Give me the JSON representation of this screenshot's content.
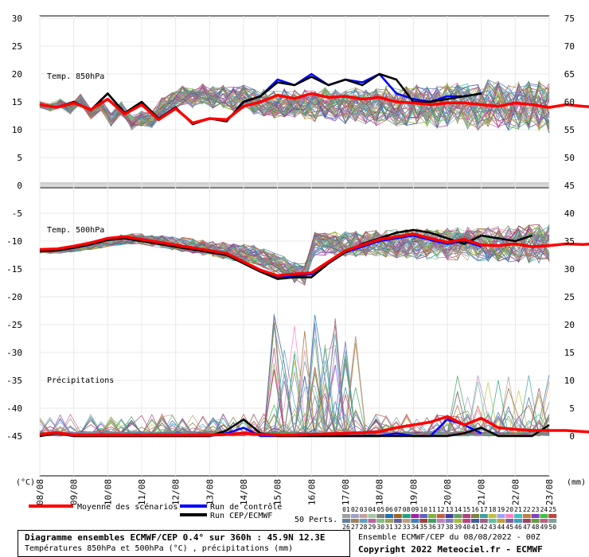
{
  "chart_data": {
    "type": "line",
    "x_dates": [
      "08/08",
      "09/08",
      "10/08",
      "11/08",
      "12/08",
      "13/08",
      "14/08",
      "15/08",
      "16/08",
      "17/08",
      "18/08",
      "19/08",
      "20/08",
      "21/08",
      "22/08",
      "23/08"
    ],
    "unit_left": "(°C)",
    "unit_right": "(mm)",
    "left_ticks": [
      30,
      25,
      20,
      15,
      10,
      5,
      0,
      -5,
      -10,
      -15,
      -20,
      -25,
      -30,
      -35,
      -40,
      -45
    ],
    "right_ticks": [
      75,
      70,
      65,
      60,
      55,
      50,
      45,
      40,
      35,
      30,
      25,
      20,
      15,
      10,
      5,
      0
    ],
    "panels": {
      "t850": {
        "label": "Temp. 850hPa",
        "control": [
          14.5,
          14,
          15,
          13.5,
          16.5,
          13,
          15,
          12,
          14,
          11,
          12,
          11.5,
          15,
          16,
          19,
          18,
          20,
          18,
          19,
          18.5,
          20,
          16.5,
          15.5,
          15,
          16,
          16,
          16.5
        ],
        "cep": [
          14.5,
          14,
          15,
          13.5,
          16.5,
          13,
          15,
          12,
          14,
          11,
          12,
          11.5,
          15,
          16,
          18.5,
          18,
          19.5,
          18,
          19,
          18,
          20,
          19,
          15,
          15,
          15.5,
          16,
          16.5
        ],
        "mean": [
          14.5,
          14,
          14.8,
          13.6,
          15.5,
          12.8,
          14.5,
          11.8,
          13.8,
          11.2,
          12,
          11.8,
          14.2,
          15,
          16.2,
          15.6,
          16.5,
          15.8,
          16,
          15.5,
          15.8,
          15,
          14.8,
          14.5,
          14.8,
          14.8,
          14.5,
          14.2,
          14.8,
          14.5,
          14,
          14.5,
          14.2,
          14,
          14.5,
          14,
          14.2,
          14.5,
          14.2,
          14,
          14.5,
          14.5,
          14.2,
          14,
          14.8,
          14.5,
          14.2,
          14.5,
          14.2,
          14.2,
          14
        ]
      },
      "t500": {
        "label": "Temp. 500hPa",
        "control": [
          -11.8,
          -11.7,
          -11.2,
          -10.6,
          -9.8,
          -9.5,
          -10,
          -10.5,
          -11,
          -11.5,
          -12,
          -12.5,
          -14,
          -15.5,
          -16.5,
          -16.2,
          -16,
          -14,
          -12,
          -11,
          -10,
          -9.5,
          -9,
          -9.8,
          -10.5,
          -10,
          -11
        ],
        "cep": [
          -11.8,
          -11.7,
          -11.2,
          -10.6,
          -9.8,
          -9.5,
          -10,
          -10.5,
          -11,
          -11.5,
          -12,
          -12.5,
          -14,
          -15.5,
          -16.8,
          -16.5,
          -16.5,
          -14,
          -12,
          -10.5,
          -9.5,
          -8.5,
          -8,
          -8.5,
          -9.5,
          -10.5,
          -9,
          -9.5,
          -10,
          -9
        ]
      },
      "precip": {
        "label": "Précipitations",
        "control": [
          0,
          0.5,
          0,
          0,
          0,
          0,
          0,
          0,
          0,
          0,
          0,
          0.5,
          1.5,
          0,
          0,
          0,
          0,
          0,
          0,
          0,
          0,
          0.5,
          0,
          0,
          3,
          2,
          0.5
        ],
        "cep": [
          0,
          0.5,
          0,
          0,
          0,
          0,
          0,
          0,
          0,
          0,
          0,
          1,
          3,
          0.5,
          0,
          0,
          0,
          0,
          0,
          0,
          0,
          0,
          0,
          0,
          0,
          0.5,
          1.5,
          0,
          0,
          0,
          2
        ]
      }
    },
    "legend": {
      "mean": "Moyenne des scénarios",
      "control": "Run de contrôle",
      "cep": "Run CEP/ECMWF",
      "perts": "50 Perts."
    },
    "series_colors": {
      "mean": "#ff0000",
      "control": "#0000ff",
      "cep": "#000000"
    },
    "pert_labels": [
      "01",
      "02",
      "03",
      "04",
      "05",
      "06",
      "07",
      "08",
      "09",
      "10",
      "11",
      "12",
      "13",
      "14",
      "15",
      "16",
      "17",
      "18",
      "19",
      "20",
      "21",
      "22",
      "23",
      "24",
      "25",
      "26",
      "27",
      "28",
      "29",
      "30",
      "31",
      "32",
      "33",
      "34",
      "35",
      "36",
      "37",
      "38",
      "39",
      "40",
      "41",
      "42",
      "43",
      "44",
      "45",
      "46",
      "47",
      "48",
      "49",
      "50"
    ],
    "pert_colors": [
      "#a0a0a0",
      "#a0a0c8",
      "#c8a0a0",
      "#a0c8a0",
      "#808080",
      "#2070b0",
      "#a06020",
      "#20a080",
      "#a020a0",
      "#6060c0",
      "#80b040",
      "#c06040",
      "#4040a0",
      "#60a060",
      "#b04080",
      "#808040",
      "#40a0a0",
      "#c0c040",
      "#a0a0ff",
      "#ff80c0",
      "#40c0c0",
      "#c08040",
      "#8040c0",
      "#40c040",
      "#c04040",
      "#6080a0",
      "#a08060",
      "#60a0c0",
      "#c060a0",
      "#80c080",
      "#a0a060",
      "#6060a0",
      "#c0a080",
      "#4080c0",
      "#a04040",
      "#40a060",
      "#c080c0",
      "#8080c0",
      "#a0c040",
      "#c04080",
      "#4060a0",
      "#a06080",
      "#60c0a0",
      "#c0a040",
      "#8060a0",
      "#40a0c0",
      "#a04060",
      "#60a040",
      "#c06080",
      "#80a0a0"
    ]
  },
  "footer": {
    "title": "Diagramme ensembles ECMWF/CEP 0.4° sur 360h : 45.9N 12.3E",
    "subtitle": "Températures 850hPa et 500hPa (°C) , précipitations (mm)",
    "ensemble_info": "Ensemble ECMWF/CEP du 08/08/2022 - 00Z",
    "copyright": "Copyright 2022 Meteociel.fr - ECMWF"
  }
}
